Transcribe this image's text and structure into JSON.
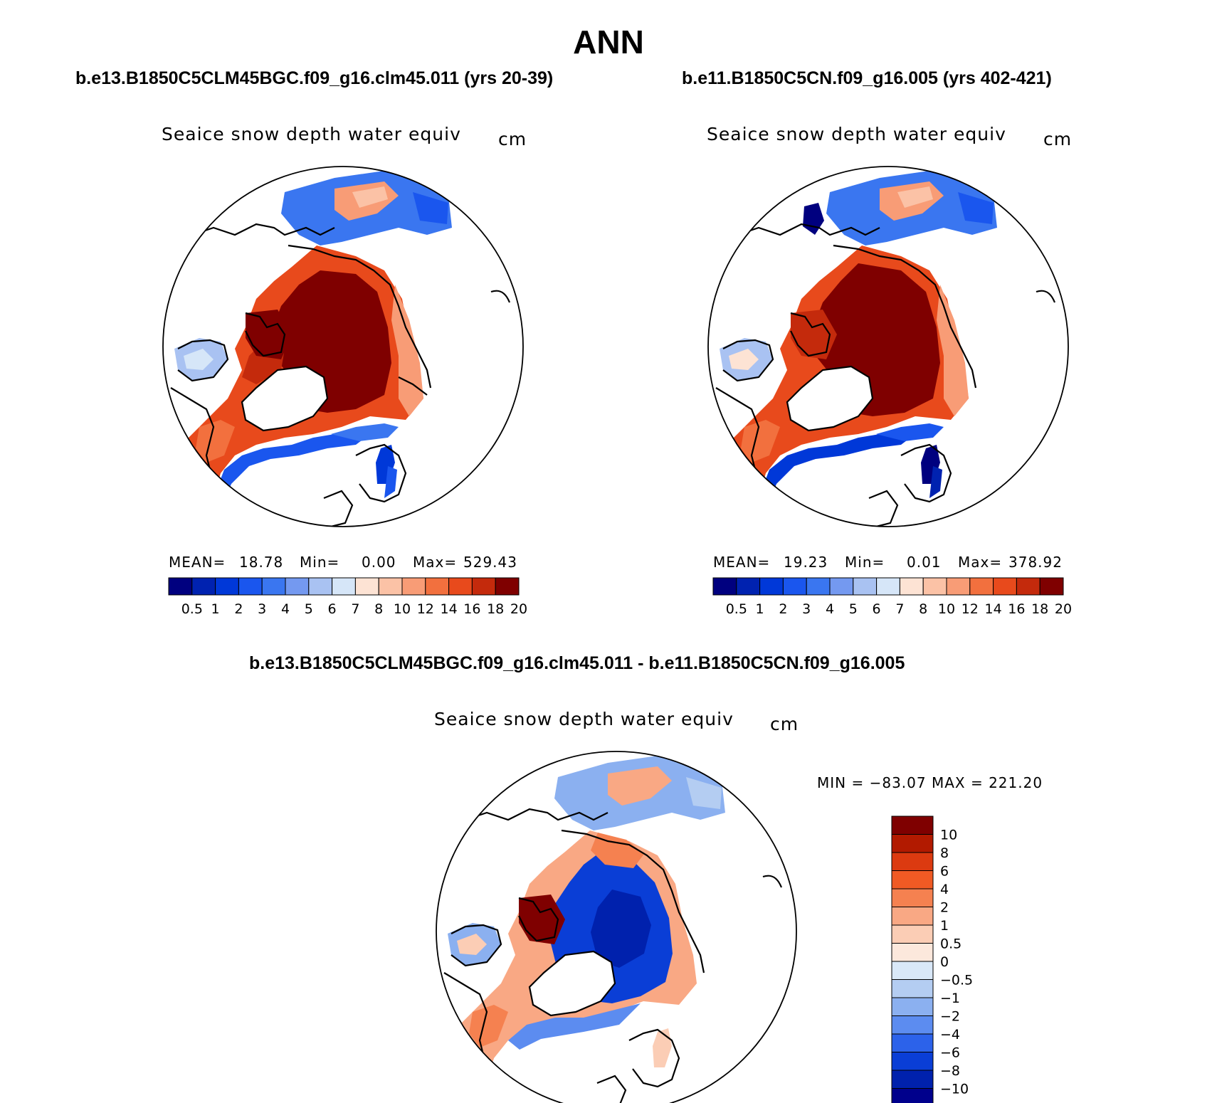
{
  "main_title": "ANN",
  "panels": {
    "left": {
      "case_title": "b.e13.B1850C5CLM45BGC.f09_g16.clm45.011 (yrs 20-39)",
      "variable": "Seaice snow depth water equiv",
      "units": "cm",
      "mean_label": "MEAN=",
      "mean_value": "18.78",
      "min_label": "Min=",
      "min_value": "0.00",
      "max_label": "Max=",
      "max_value": "529.43"
    },
    "right": {
      "case_title": "b.e11.B1850C5CN.f09_g16.005 (yrs 402-421)",
      "variable": "Seaice snow depth water equiv",
      "units": "cm",
      "mean_label": "MEAN=",
      "mean_value": "19.23",
      "min_label": "Min=",
      "min_value": "0.01",
      "max_label": "Max=",
      "max_value": "378.92"
    },
    "diff": {
      "case_title": "b.e13.B1850C5CLM45BGC.f09_g16.clm45.011 - b.e11.B1850C5CN.f09_g16.005",
      "variable": "Seaice snow depth water equiv",
      "units": "cm",
      "minmax": "MIN = −83.07 MAX = 221.20"
    }
  },
  "colorbar_abs": {
    "labels": [
      "0.5",
      "1",
      "2",
      "3",
      "4",
      "5",
      "6",
      "7",
      "8",
      "10",
      "12",
      "14",
      "16",
      "18",
      "20"
    ],
    "colors": [
      "#00007f",
      "#0022b0",
      "#0038d8",
      "#1a56ee",
      "#3a76f0",
      "#7499f0",
      "#a9c2f2",
      "#d6e6f8",
      "#fde3d4",
      "#fbc2a6",
      "#f89c76",
      "#f2703e",
      "#e84a1c",
      "#c42a0c",
      "#7f0000"
    ]
  },
  "colorbar_diff": {
    "labels": [
      "10",
      "8",
      "6",
      "4",
      "2",
      "1",
      "0.5",
      "0",
      "−0.5",
      "−1",
      "−2",
      "−4",
      "−6",
      "−8",
      "−10"
    ],
    "colors": [
      "#7f0000",
      "#b21a00",
      "#dc3a10",
      "#f05a24",
      "#f58150",
      "#f9a884",
      "#fbcdb5",
      "#fce8dc",
      "#d9e8f8",
      "#b4cdf2",
      "#8bb0f0",
      "#5c8cf0",
      "#2c62ea",
      "#0a3ed6",
      "#0021ad",
      "#00008c"
    ]
  }
}
